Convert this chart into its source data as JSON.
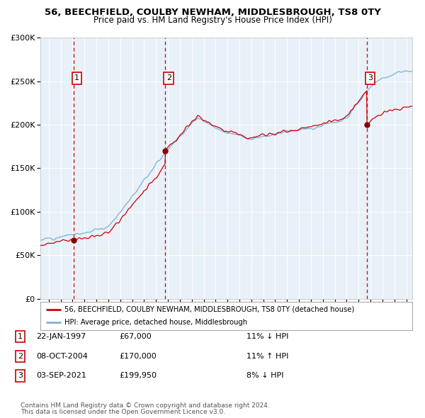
{
  "title1": "56, BEECHFIELD, COULBY NEWHAM, MIDDLESBROUGH, TS8 0TY",
  "title2": "Price paid vs. HM Land Registry's House Price Index (HPI)",
  "bg_color": "#e8f0f8",
  "sale1_date": 1997.07,
  "sale1_price": 67000,
  "sale2_date": 2004.78,
  "sale2_price": 170000,
  "sale3_date": 2021.67,
  "sale3_price": 199950,
  "legend_line1": "56, BEECHFIELD, COULBY NEWHAM, MIDDLESBROUGH, TS8 0TY (detached house)",
  "legend_line2": "HPI: Average price, detached house, Middlesbrough",
  "table_rows": [
    {
      "num": "1",
      "date": "22-JAN-1997",
      "price": "£67,000",
      "hpi": "11% ↓ HPI"
    },
    {
      "num": "2",
      "date": "08-OCT-2004",
      "price": "£170,000",
      "hpi": "11% ↑ HPI"
    },
    {
      "num": "3",
      "date": "03-SEP-2021",
      "price": "£199,950",
      "hpi": "8% ↓ HPI"
    }
  ],
  "footer1": "Contains HM Land Registry data © Crown copyright and database right 2024.",
  "footer2": "This data is licensed under the Open Government Licence v3.0.",
  "hpi_color": "#7ab0d4",
  "sale_color": "#cc0000",
  "ylim": [
    0,
    300000
  ],
  "xlim_start": 1994.3,
  "xlim_end": 2025.5
}
